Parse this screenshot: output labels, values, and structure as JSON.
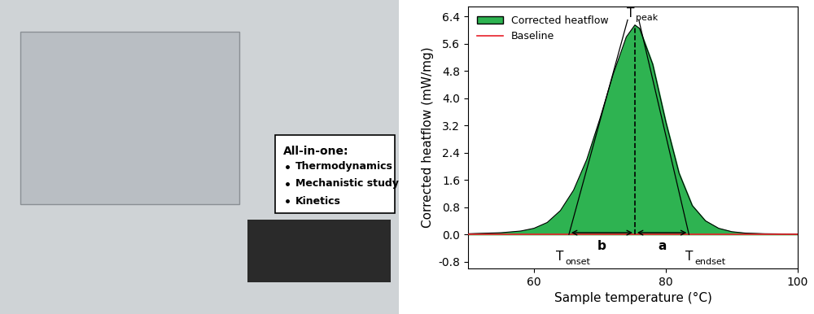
{
  "chart_data": {
    "type": "area",
    "x_label": "Sample temperature (°C)",
    "y_label": "Corrected heatflow (mW/mg)",
    "x": [
      50,
      55,
      58,
      60,
      62,
      64,
      66,
      68,
      70,
      72,
      74,
      75.3,
      76,
      78,
      80,
      82,
      84,
      86,
      88,
      90,
      92,
      95,
      100
    ],
    "series": [
      {
        "name": "Corrected heatflow",
        "type": "area",
        "color": "#2eb351",
        "values": [
          0.02,
          0.05,
          0.1,
          0.18,
          0.35,
          0.7,
          1.3,
          2.2,
          3.4,
          4.7,
          5.8,
          6.15,
          6.05,
          5.0,
          3.3,
          1.8,
          0.85,
          0.4,
          0.18,
          0.08,
          0.04,
          0.02,
          0.01
        ]
      },
      {
        "name": "Baseline",
        "type": "line",
        "color": "#e8202a",
        "x": [
          50,
          100
        ],
        "values": [
          0,
          0
        ]
      }
    ],
    "tangent_lines": [
      {
        "x": [
          65.3,
          74.2
        ],
        "y": [
          0,
          6.3
        ]
      },
      {
        "x": [
          83.5,
          75.9
        ],
        "y": [
          0,
          6.3
        ]
      }
    ],
    "peak_line": {
      "x": 75.3,
      "y": [
        0,
        6.15
      ]
    },
    "intervals": [
      {
        "text": "b",
        "x": [
          65.3,
          75.3
        ],
        "y": 0.05
      },
      {
        "text": "a",
        "x": [
          75.3,
          83.5
        ],
        "y": 0.05
      }
    ],
    "annotations": [
      {
        "text": "T",
        "sub": "peak",
        "x": 75.3,
        "y": 6.15
      },
      {
        "text": "T",
        "sub": "onset",
        "x": 65.3,
        "y": 0
      },
      {
        "text": "T",
        "sub": "endset",
        "x": 83.5,
        "y": 0
      }
    ],
    "xlim": [
      50,
      100
    ],
    "xticks": [
      60,
      80,
      100
    ],
    "ylim": [
      -1.0,
      6.7
    ],
    "yticks": [
      -0.8,
      {
        "value": 0,
        "label": "0.0"
      },
      0.8,
      1.6,
      2.4,
      3.2,
      {
        "value": 4,
        "label": "4.0"
      },
      4.8,
      5.6,
      6.4
    ],
    "legend": "upper left",
    "grid": false
  },
  "photo_panel": {
    "title": "All-in-one:",
    "items": [
      "Thermodynamics",
      "Mechanistic study",
      "Kinetics"
    ]
  }
}
